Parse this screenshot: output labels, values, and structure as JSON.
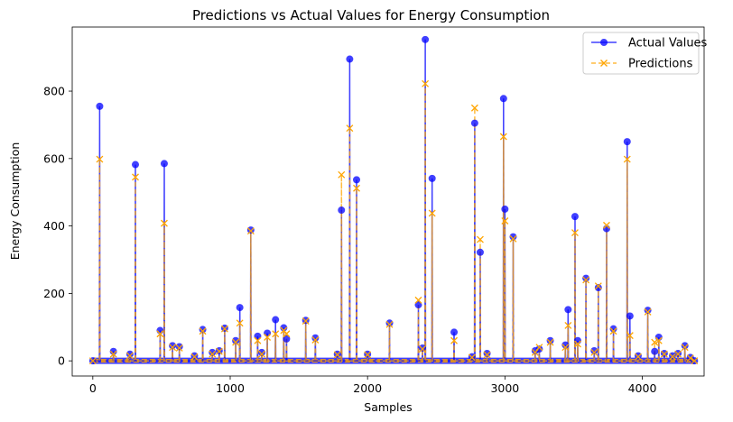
{
  "chart_data": {
    "type": "line",
    "title": "Predictions vs Actual Values for Energy Consumption",
    "xlabel": "Samples",
    "ylabel": "Energy Consumption",
    "xlim": [
      -150,
      4450
    ],
    "ylim": [
      -45,
      990
    ],
    "xticks": [
      0,
      1000,
      2000,
      3000,
      4000
    ],
    "yticks": [
      0,
      200,
      400,
      600,
      800
    ],
    "grid": false,
    "legend_position": "top-right",
    "series": [
      {
        "name": "Actual Values",
        "color": "#0000ff",
        "marker": "circle",
        "linestyle": "solid",
        "x": [
          0,
          50,
          150,
          270,
          310,
          490,
          520,
          580,
          630,
          740,
          800,
          870,
          920,
          960,
          1040,
          1070,
          1150,
          1200,
          1230,
          1270,
          1330,
          1390,
          1410,
          1550,
          1620,
          1780,
          1810,
          1870,
          1920,
          2000,
          2160,
          2370,
          2400,
          2420,
          2470,
          2630,
          2760,
          2780,
          2820,
          2870,
          2990,
          3000,
          3060,
          3220,
          3250,
          3330,
          3440,
          3460,
          3510,
          3530,
          3590,
          3650,
          3680,
          3740,
          3790,
          3890,
          3910,
          3970,
          4040,
          4090,
          4120,
          4160,
          4220,
          4260,
          4310,
          4350,
          4380
        ],
        "y": [
          0,
          755,
          28,
          20,
          582,
          90,
          585,
          45,
          42,
          15,
          93,
          25,
          30,
          97,
          60,
          158,
          388,
          73,
          25,
          82,
          122,
          98,
          65,
          120,
          68,
          20,
          447,
          895,
          537,
          20,
          112,
          166,
          38,
          953,
          541,
          85,
          12,
          705,
          322,
          22,
          778,
          450,
          368,
          30,
          35,
          60,
          47,
          152,
          428,
          60,
          245,
          30,
          217,
          392,
          95,
          650,
          133,
          15,
          150,
          28,
          70,
          22,
          15,
          22,
          45,
          10,
          0
        ]
      },
      {
        "name": "Predictions",
        "color": "#ffa500",
        "marker": "x",
        "linestyle": "dashed",
        "x": [
          0,
          50,
          150,
          270,
          310,
          490,
          520,
          580,
          630,
          740,
          800,
          870,
          920,
          960,
          1040,
          1070,
          1150,
          1200,
          1230,
          1270,
          1330,
          1390,
          1410,
          1550,
          1620,
          1780,
          1810,
          1870,
          1920,
          2000,
          2160,
          2370,
          2400,
          2420,
          2470,
          2630,
          2760,
          2780,
          2820,
          2870,
          2990,
          3000,
          3060,
          3220,
          3250,
          3330,
          3440,
          3460,
          3510,
          3530,
          3590,
          3650,
          3680,
          3740,
          3790,
          3890,
          3910,
          3970,
          4040,
          4090,
          4120,
          4160,
          4220,
          4260,
          4310,
          4350,
          4380
        ],
        "y": [
          0,
          598,
          20,
          15,
          545,
          80,
          408,
          40,
          38,
          12,
          88,
          20,
          28,
          95,
          55,
          112,
          385,
          60,
          20,
          70,
          80,
          90,
          80,
          118,
          62,
          18,
          552,
          690,
          512,
          18,
          108,
          180,
          35,
          822,
          438,
          60,
          10,
          750,
          360,
          18,
          665,
          415,
          362,
          25,
          40,
          55,
          40,
          105,
          380,
          50,
          240,
          25,
          222,
          402,
          88,
          598,
          75,
          12,
          145,
          55,
          60,
          20,
          12,
          20,
          40,
          8,
          0
        ]
      }
    ]
  }
}
